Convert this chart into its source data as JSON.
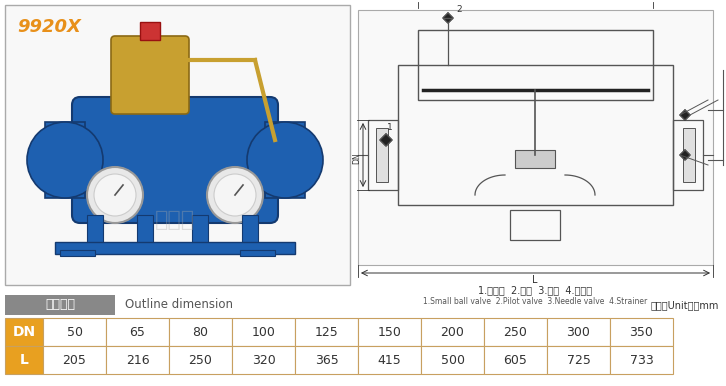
{
  "title": "9920X",
  "section_label_cn": "外型尺寸",
  "section_label_en": "Outline dimension",
  "unit_text": "单位（Unit）：mm",
  "legend_cn": "1.小球阀  2.导阀  3.针阀  4.过滤器",
  "legend_en": "1.Small ball valve  2.Pilot valve  3.Needle valve  4.Strainer",
  "table_headers": [
    "DN",
    "50",
    "65",
    "80",
    "100",
    "125",
    "150",
    "200",
    "250",
    "300",
    "350"
  ],
  "table_row_L": [
    "L",
    "205",
    "216",
    "250",
    "320",
    "365",
    "415",
    "500",
    "605",
    "725",
    "733"
  ],
  "header_bg": "#E8A020",
  "header_fg": "#FFFFFF",
  "cell_bg": "#FFFFFF",
  "cell_fg": "#333333",
  "border_color": "#C8A060",
  "section_bg": "#888888",
  "section_fg": "#FFFFFF",
  "photo_border": "#AAAAAA",
  "title_color": "#E8901A",
  "background_color": "#FFFFFF",
  "line_color": "#555555",
  "dim_color": "#333333"
}
